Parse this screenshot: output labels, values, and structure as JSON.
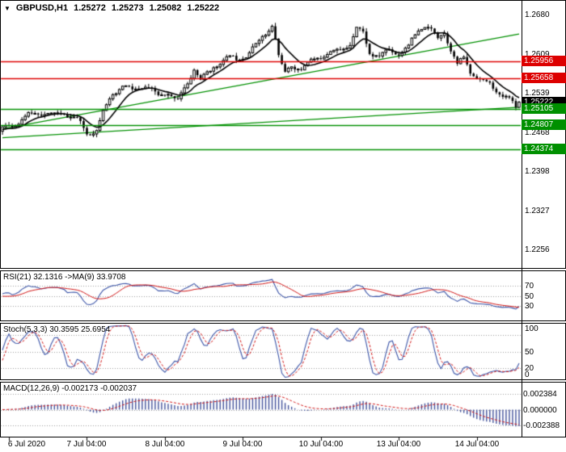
{
  "header": {
    "symbol": "GBPUSD,H1",
    "open": "1.25272",
    "high": "1.25273",
    "low": "1.25082",
    "close": "1.25222"
  },
  "colors": {
    "background": "#ffffff",
    "border": "#000000",
    "candle": "#000000",
    "ma_line": "#000000",
    "resistance": "#dd0000",
    "support": "#009000",
    "price_box": "#000000",
    "indicator_blue": "#3c55a8",
    "indicator_red": "#d01515",
    "macd_hist": "#44549c",
    "grid_dash": "#9c9c9c"
  },
  "chart_data": [
    {
      "type": "candlestick",
      "panel": "main",
      "symbol": "GBPUSD",
      "timeframe": "H1",
      "ohlc_display": {
        "open": 1.25272,
        "high": 1.25273,
        "low": 1.25082,
        "close": 1.25222
      },
      "bars": 160,
      "ylim": [
        1.2223,
        1.2705
      ],
      "yticks": [
        {
          "v": 1.268,
          "t": "1.2680"
        },
        {
          "v": 1.2609,
          "t": "1.2609"
        },
        {
          "v": 1.2539,
          "t": "1.2539"
        },
        {
          "v": 1.2468,
          "t": "1.2468"
        },
        {
          "v": 1.2398,
          "t": "1.2398"
        },
        {
          "v": 1.2327,
          "t": "1.2327"
        },
        {
          "v": 1.2256,
          "t": "1.2256"
        }
      ],
      "levels": [
        {
          "value": 1.25956,
          "label": "1.25956",
          "color": "resistance"
        },
        {
          "value": 1.25658,
          "label": "1.25658",
          "color": "resistance"
        },
        {
          "value": 1.25222,
          "label": "1.25222",
          "color": "price"
        },
        {
          "value": 1.25105,
          "label": "1.25105",
          "color": "support"
        },
        {
          "value": 1.24807,
          "label": "1.24807",
          "color": "support"
        },
        {
          "value": 1.24374,
          "label": "1.24374",
          "color": "support"
        }
      ],
      "trendlines": [
        {
          "from": [
            0,
            1.2474
          ],
          "to": [
            159,
            1.2645
          ]
        },
        {
          "from": [
            0,
            1.2458
          ],
          "to": [
            159,
            1.2513
          ]
        }
      ],
      "price_path_anchors": [
        [
          0,
          1.2477
        ],
        [
          4,
          1.2484
        ],
        [
          8,
          1.2497
        ],
        [
          11,
          1.2503
        ],
        [
          15,
          1.2496
        ],
        [
          19,
          1.2502
        ],
        [
          23,
          1.2492
        ],
        [
          26,
          1.2468
        ],
        [
          29,
          1.2474
        ],
        [
          31,
          1.2506
        ],
        [
          34,
          1.2536
        ],
        [
          37,
          1.2551
        ],
        [
          40,
          1.254
        ],
        [
          44,
          1.2551
        ],
        [
          48,
          1.2532
        ],
        [
          51,
          1.2541
        ],
        [
          54,
          1.2528
        ],
        [
          57,
          1.2556
        ],
        [
          59,
          1.2585
        ],
        [
          61,
          1.2563
        ],
        [
          64,
          1.2576
        ],
        [
          67,
          1.2594
        ],
        [
          70,
          1.2602
        ],
        [
          72,
          1.2596
        ],
        [
          75,
          1.2608
        ],
        [
          78,
          1.2626
        ],
        [
          81,
          1.2647
        ],
        [
          83,
          1.2664
        ],
        [
          84,
          1.264
        ],
        [
          85,
          1.2606
        ],
        [
          87,
          1.2573
        ],
        [
          89,
          1.2589
        ],
        [
          92,
          1.258
        ],
        [
          95,
          1.2594
        ],
        [
          98,
          1.2604
        ],
        [
          101,
          1.2611
        ],
        [
          104,
          1.2617
        ],
        [
          107,
          1.263
        ],
        [
          109,
          1.2657
        ],
        [
          111,
          1.2648
        ],
        [
          113,
          1.2613
        ],
        [
          116,
          1.2605
        ],
        [
          119,
          1.2614
        ],
        [
          122,
          1.2609
        ],
        [
          125,
          1.2621
        ],
        [
          128,
          1.265
        ],
        [
          130,
          1.2662
        ],
        [
          132,
          1.2654
        ],
        [
          134,
          1.2637
        ],
        [
          136,
          1.265
        ],
        [
          138,
          1.2621
        ],
        [
          140,
          1.2591
        ],
        [
          142,
          1.2601
        ],
        [
          144,
          1.2576
        ],
        [
          146,
          1.2569
        ],
        [
          148,
          1.2557
        ],
        [
          150,
          1.2551
        ],
        [
          152,
          1.254
        ],
        [
          154,
          1.2534
        ],
        [
          156,
          1.2529
        ],
        [
          158,
          1.251
        ],
        [
          159,
          1.25222
        ]
      ],
      "xtick_indices": [
        2,
        26,
        50,
        74,
        98,
        122,
        146
      ],
      "xtick_labels": [
        "6 Jul 2020",
        "7 Jul 04:00",
        "8 Jul 04:00",
        "9 Jul 04:00",
        "10 Jul 04:00",
        "13 Jul 04:00",
        "14 Jul 04:00"
      ]
    },
    {
      "type": "line",
      "panel": "rsi",
      "label": "RSI(21) 32.1316 ->MA(9) 33.9708",
      "params": {
        "period": 21,
        "ma_period": 9
      },
      "last": {
        "rsi": 32.1316,
        "ma": 33.9708
      },
      "ylim": [
        0,
        100
      ],
      "yticks": [
        70,
        50,
        30
      ],
      "levels": [
        70,
        50,
        30
      ]
    },
    {
      "type": "line",
      "panel": "stochastic",
      "label": "Stoch(5,3,3) 30.3595 25.6954",
      "params": {
        "k": 5,
        "d": 3,
        "slowing": 3
      },
      "last": {
        "main": 30.3595,
        "signal": 25.6954
      },
      "ylim": [
        0,
        100
      ],
      "yticks": [
        100,
        50,
        20,
        0
      ],
      "levels": [
        80,
        50,
        20
      ]
    },
    {
      "type": "macd",
      "panel": "macd",
      "label": "MACD(12,26,9) -0.002173 -0.002037",
      "params": {
        "fast": 12,
        "slow": 26,
        "signal": 9
      },
      "last": {
        "macd": -0.002173,
        "signal": -0.002037
      },
      "ylim": [
        -0.004,
        0.004
      ],
      "yticks": [
        {
          "v": 0.002384,
          "t": "0.002384"
        },
        {
          "v": 0.0,
          "t": "0.000000"
        },
        {
          "v": -0.002388,
          "t": "-0.002388"
        }
      ],
      "levels": [
        0.002384,
        0.0,
        -0.002388
      ]
    }
  ]
}
